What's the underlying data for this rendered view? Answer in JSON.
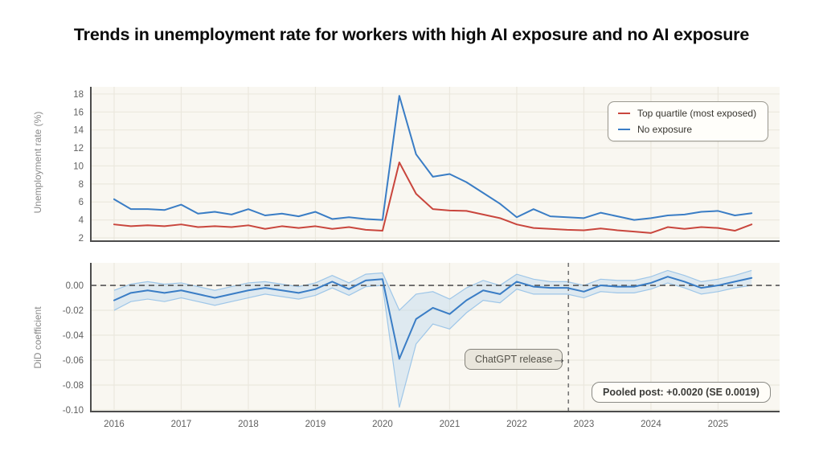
{
  "title": "Trends in unemployment rate for workers with high AI exposure and no AI exposure",
  "colors": {
    "red": "#c9463d",
    "blue": "#3a7dc5",
    "band_fill": "#b9d6ee",
    "band_edge": "#9ec6e8",
    "plot_bg": "#f9f7f1",
    "grid": "#ebe8de",
    "spine": "#4c4c4c",
    "zero_dash": "#555555",
    "vline_dash": "#777777"
  },
  "chart_data": [
    {
      "type": "line",
      "ylabel": "Unemployment rate (%)",
      "xlim": [
        2015.653,
        2025.917
      ],
      "ylim": [
        1.64,
        18.8
      ],
      "xticks": [
        2016,
        2017,
        2018,
        2019,
        2020,
        2021,
        2022,
        2023,
        2024,
        2025
      ],
      "xtick_labels": [
        "2016",
        "2017",
        "2018",
        "2019",
        "2020",
        "2021",
        "2022",
        "2023",
        "2024",
        "2025"
      ],
      "ytick_values": [
        2,
        4,
        6,
        8,
        10,
        12,
        14,
        16,
        18
      ],
      "ytick_labels": [
        "2",
        "4",
        "6",
        "8",
        "10",
        "12",
        "14",
        "16",
        "18"
      ],
      "legend_position": "top-right",
      "x": [
        2016,
        2016.25,
        2016.5,
        2016.75,
        2017,
        2017.25,
        2017.5,
        2017.75,
        2018,
        2018.25,
        2018.5,
        2018.75,
        2019,
        2019.25,
        2019.5,
        2019.75,
        2020,
        2020.25,
        2020.5,
        2020.75,
        2021,
        2021.25,
        2021.5,
        2021.75,
        2022,
        2022.25,
        2022.5,
        2022.75,
        2023,
        2023.25,
        2023.5,
        2023.75,
        2024,
        2024.25,
        2024.5,
        2024.75,
        2025,
        2025.25,
        2025.5
      ],
      "series": [
        {
          "name": "Top quartile (most exposed)",
          "color_key": "red",
          "values": [
            3.5,
            3.3,
            3.4,
            3.3,
            3.5,
            3.2,
            3.3,
            3.2,
            3.4,
            3.0,
            3.3,
            3.1,
            3.3,
            3.0,
            3.2,
            2.9,
            2.8,
            10.4,
            6.9,
            5.2,
            5.05,
            5.0,
            4.6,
            4.2,
            3.5,
            3.1,
            3.0,
            2.9,
            2.85,
            3.05,
            2.85,
            2.7,
            2.55,
            3.2,
            3.0,
            3.2,
            3.1,
            2.8,
            3.5
          ]
        },
        {
          "name": "No exposure",
          "color_key": "blue",
          "values": [
            6.3,
            5.2,
            5.2,
            5.1,
            5.7,
            4.7,
            4.9,
            4.6,
            5.2,
            4.5,
            4.7,
            4.4,
            4.9,
            4.1,
            4.3,
            4.1,
            4.0,
            17.8,
            11.3,
            8.8,
            9.1,
            8.2,
            7.0,
            5.8,
            4.3,
            5.2,
            4.4,
            4.3,
            4.2,
            4.8,
            4.4,
            4.0,
            4.2,
            4.5,
            4.6,
            4.9,
            5.0,
            4.5,
            4.75
          ]
        }
      ]
    },
    {
      "type": "line+band",
      "ylabel": "DiD coefficient",
      "xlim": [
        2015.653,
        2025.917
      ],
      "ylim": [
        -0.1013,
        0.0181
      ],
      "xticks": [
        2016,
        2017,
        2018,
        2019,
        2020,
        2021,
        2022,
        2023,
        2024,
        2025
      ],
      "xtick_labels": [
        "2016",
        "2017",
        "2018",
        "2019",
        "2020",
        "2021",
        "2022",
        "2023",
        "2024",
        "2025"
      ],
      "ytick_values": [
        0,
        -0.02,
        -0.04,
        -0.06,
        -0.08,
        -0.1
      ],
      "ytick_labels": [
        "0.00",
        "-0.02",
        "-0.04",
        "-0.06",
        "-0.08",
        "-0.10"
      ],
      "zero_line": true,
      "vline": {
        "x": 2022.77,
        "label": "ChatGPT release"
      },
      "annotation": "Pooled post: +0.0020 (SE 0.0019)",
      "x": [
        2016,
        2016.25,
        2016.5,
        2016.75,
        2017,
        2017.25,
        2017.5,
        2017.75,
        2018,
        2018.25,
        2018.5,
        2018.75,
        2019,
        2019.25,
        2019.5,
        2019.75,
        2020,
        2020.25,
        2020.5,
        2020.75,
        2021,
        2021.25,
        2021.5,
        2021.75,
        2022,
        2022.25,
        2022.5,
        2022.75,
        2023,
        2023.25,
        2023.5,
        2023.75,
        2024,
        2024.25,
        2024.5,
        2024.75,
        2025,
        2025.25,
        2025.5
      ],
      "series": [
        {
          "name": "DiD coefficient",
          "color_key": "blue",
          "values": [
            -0.012,
            -0.006,
            -0.004,
            -0.006,
            -0.004,
            -0.007,
            -0.01,
            -0.007,
            -0.004,
            -0.002,
            -0.004,
            -0.006,
            -0.003,
            0.003,
            -0.003,
            0.004,
            0.005,
            -0.059,
            -0.027,
            -0.018,
            -0.023,
            -0.012,
            -0.004,
            -0.007,
            0.003,
            -0.001,
            -0.002,
            -0.002,
            -0.005,
            0.0,
            -0.001,
            -0.001,
            0.002,
            0.007,
            0.003,
            -0.002,
            0.0,
            0.003,
            0.006
          ]
        }
      ],
      "band_halfwidth": [
        0.008,
        0.007,
        0.007,
        0.007,
        0.006,
        0.006,
        0.006,
        0.006,
        0.006,
        0.005,
        0.005,
        0.005,
        0.005,
        0.005,
        0.005,
        0.005,
        0.005,
        0.039,
        0.02,
        0.013,
        0.012,
        0.01,
        0.008,
        0.007,
        0.006,
        0.006,
        0.005,
        0.005,
        0.005,
        0.005,
        0.005,
        0.005,
        0.005,
        0.005,
        0.005,
        0.005,
        0.005,
        0.005,
        0.006
      ]
    }
  ]
}
